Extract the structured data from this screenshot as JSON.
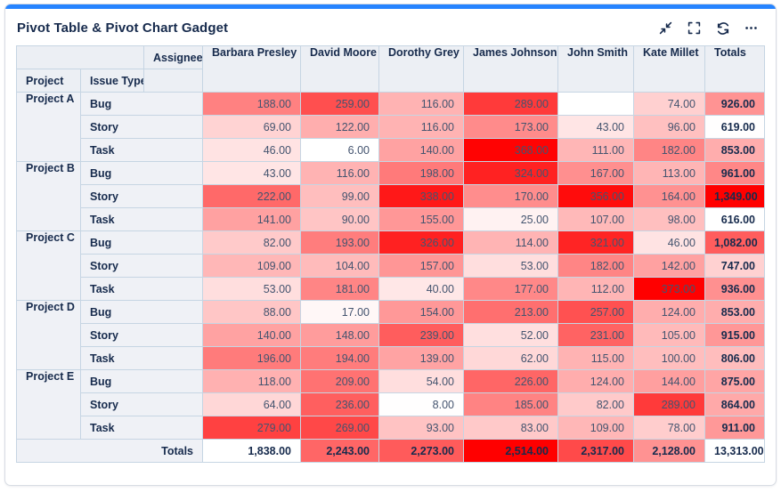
{
  "accent_color": "#2684FF",
  "header": {
    "title": "Pivot Table & Pivot Chart Gadget",
    "actions": [
      {
        "label": "minimize",
        "icon": "minimize-icon"
      },
      {
        "label": "fullscreen",
        "icon": "fullscreen-icon"
      },
      {
        "label": "refresh",
        "icon": "refresh-icon"
      },
      {
        "label": "more",
        "icon": "more-icon"
      }
    ]
  },
  "chart_data": {
    "type": "heatmap",
    "title": "Pivot Table & Pivot Chart Gadget",
    "corner_label": "Assignee",
    "row_headers": [
      "Project",
      "Issue Type"
    ],
    "columns": [
      "Barbara Presley",
      "David Moore",
      "Dorothy Grey",
      "James Johnson",
      "John Smith",
      "Kate Millet"
    ],
    "totals_label": "Totals",
    "heat_colors": {
      "low": "#FFFFFF",
      "high": "#FF0000"
    },
    "scales": {
      "cells": [
        6,
        373
      ],
      "row_totals": [
        616,
        1349
      ],
      "column_totals": [
        1838,
        2514
      ]
    },
    "rows": [
      {
        "project": "Project A",
        "issue_type": "Bug",
        "values": [
          188,
          259,
          116,
          289,
          null,
          74
        ],
        "total": 926
      },
      {
        "project": "Project A",
        "issue_type": "Story",
        "values": [
          69,
          122,
          116,
          173,
          43,
          96
        ],
        "total": 619
      },
      {
        "project": "Project A",
        "issue_type": "Task",
        "values": [
          46,
          6,
          140,
          368,
          111,
          182
        ],
        "total": 853
      },
      {
        "project": "Project B",
        "issue_type": "Bug",
        "values": [
          43,
          116,
          198,
          324,
          167,
          113
        ],
        "total": 961
      },
      {
        "project": "Project B",
        "issue_type": "Story",
        "values": [
          222,
          99,
          338,
          170,
          356,
          164
        ],
        "total": 1349
      },
      {
        "project": "Project B",
        "issue_type": "Task",
        "values": [
          141,
          90,
          155,
          25,
          107,
          98
        ],
        "total": 616
      },
      {
        "project": "Project C",
        "issue_type": "Bug",
        "values": [
          82,
          193,
          326,
          114,
          321,
          46
        ],
        "total": 1082
      },
      {
        "project": "Project C",
        "issue_type": "Story",
        "values": [
          109,
          104,
          157,
          53,
          182,
          142
        ],
        "total": 747
      },
      {
        "project": "Project C",
        "issue_type": "Task",
        "values": [
          53,
          181,
          40,
          177,
          112,
          373
        ],
        "total": 936
      },
      {
        "project": "Project D",
        "issue_type": "Bug",
        "values": [
          88,
          17,
          154,
          213,
          257,
          124
        ],
        "total": 853
      },
      {
        "project": "Project D",
        "issue_type": "Story",
        "values": [
          140,
          148,
          239,
          52,
          231,
          105
        ],
        "total": 915
      },
      {
        "project": "Project D",
        "issue_type": "Task",
        "values": [
          196,
          194,
          139,
          62,
          115,
          100
        ],
        "total": 806
      },
      {
        "project": "Project E",
        "issue_type": "Bug",
        "values": [
          118,
          209,
          54,
          226,
          124,
          144
        ],
        "total": 875
      },
      {
        "project": "Project E",
        "issue_type": "Story",
        "values": [
          64,
          236,
          8,
          185,
          82,
          289
        ],
        "total": 864
      },
      {
        "project": "Project E",
        "issue_type": "Task",
        "values": [
          279,
          269,
          93,
          83,
          109,
          78
        ],
        "total": 911
      }
    ],
    "column_totals": [
      1838,
      2243,
      2273,
      2514,
      2317,
      2128
    ],
    "grand_total": 13313
  }
}
